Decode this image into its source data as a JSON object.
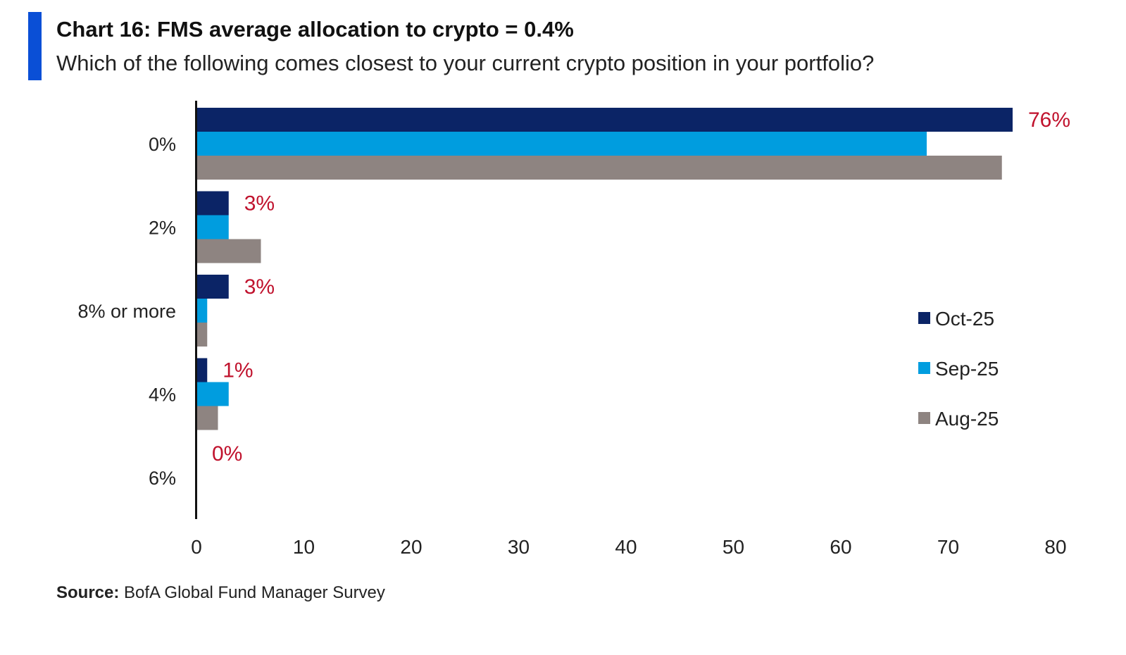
{
  "header": {
    "title": "Chart 16: FMS average allocation to crypto = 0.4%",
    "subtitle": "Which of the following comes closest to your current crypto position in your portfolio?"
  },
  "footer": {
    "source_label": "Source:",
    "source_text": "BofA Global Fund Manager Survey"
  },
  "colors": {
    "accent": "#0a4fd6",
    "oct": "#0b2466",
    "sep": "#009ddf",
    "aug": "#8e8481",
    "label_red": "#c0122d"
  },
  "chart_data": {
    "type": "bar",
    "orientation": "horizontal",
    "title": "Chart 16: FMS average allocation to crypto = 0.4%",
    "subtitle": "Which of the following comes closest to your current crypto position in your portfolio?",
    "categories": [
      "0%",
      "2%",
      "8% or more",
      "4%",
      "6%"
    ],
    "series": [
      {
        "name": "Oct-25",
        "values": [
          76,
          3,
          3,
          1,
          0
        ]
      },
      {
        "name": "Sep-25",
        "values": [
          68,
          3,
          1,
          3,
          0
        ]
      },
      {
        "name": "Aug-25",
        "values": [
          75,
          6,
          1,
          2,
          0
        ]
      }
    ],
    "data_labels": [
      "76%",
      "3%",
      "3%",
      "1%",
      "0%"
    ],
    "xlim": [
      0,
      80
    ],
    "xticks": [
      "0",
      "10",
      "20",
      "30",
      "40",
      "50",
      "60",
      "70",
      "80"
    ],
    "xtick_values": [
      0,
      10,
      20,
      30,
      40,
      50,
      60,
      70,
      80
    ],
    "xlabel": "",
    "ylabel": "",
    "legend_position": "right",
    "grid": false
  }
}
